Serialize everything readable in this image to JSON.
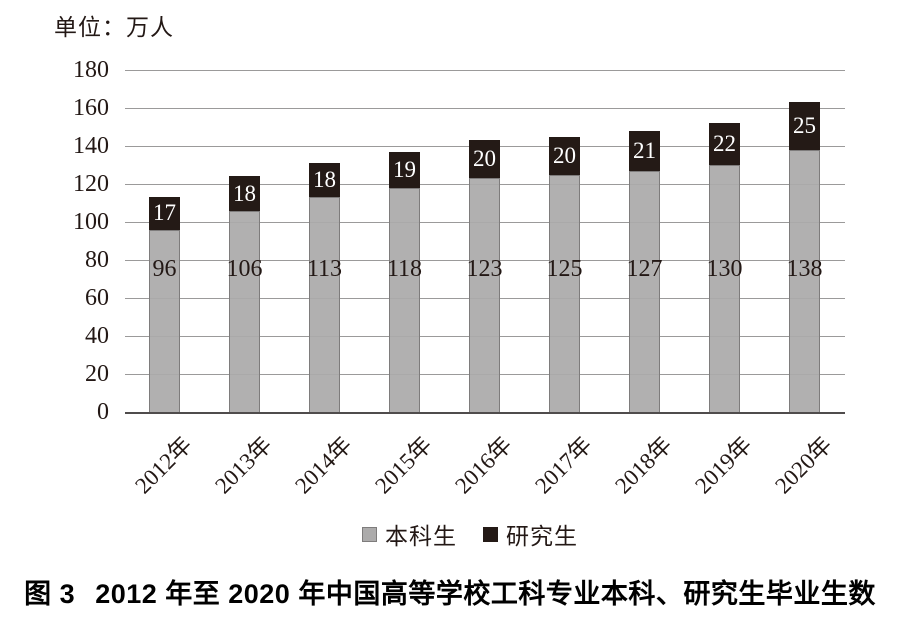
{
  "unit_label": "单位：万人",
  "chart_data": {
    "type": "bar",
    "stacked": true,
    "title": "图 3 2012 年至 2020 年中国高等学校工科专业本科、研究生毕业生数",
    "categories": [
      "2012年",
      "2013年",
      "2014年",
      "2015年",
      "2016年",
      "2017年",
      "2018年",
      "2019年",
      "2020年"
    ],
    "series": [
      {
        "name": "本科生",
        "color": "#acabab",
        "label_color": "#231815",
        "values": [
          96,
          106,
          113,
          118,
          123,
          125,
          127,
          130,
          138
        ]
      },
      {
        "name": "研究生",
        "color": "#241a16",
        "label_color": "#ffffff",
        "values": [
          17,
          18,
          18,
          19,
          20,
          20,
          21,
          22,
          25
        ]
      }
    ],
    "ylim": [
      0,
      180
    ],
    "yticks": [
      0,
      20,
      40,
      60,
      80,
      100,
      120,
      140,
      160,
      180
    ],
    "ylabel_unit": "万人",
    "grid": true,
    "legend_position": "bottom"
  },
  "legend": {
    "items": [
      {
        "label": "本科生",
        "color": "#acabab"
      },
      {
        "label": "研究生",
        "color": "#241a16"
      }
    ]
  },
  "caption": {
    "fig_label": "图 3",
    "text": "2012 年至 2020 年中国高等学校工科专业本科、研究生毕业生数"
  },
  "colors": {
    "gridline": "#9b9a9a",
    "axis": "#4f4c4c",
    "text": "#231815",
    "bar_border": "#7e7c7c",
    "background": "#ffffff"
  }
}
